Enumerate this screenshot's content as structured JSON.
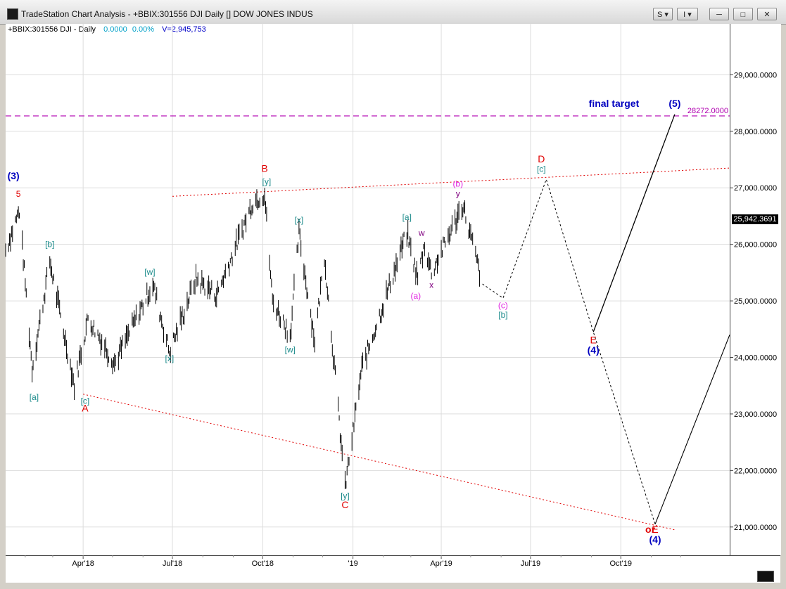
{
  "window": {
    "title": "TradeStation Chart Analysis - +BBIX:301556 DJI Daily [] DOW JONES INDUS",
    "buttons": {
      "style": "S",
      "insert": "I",
      "minimize": "─",
      "maximize": "□",
      "close": "✕"
    }
  },
  "legend": {
    "symbol": "+BBIX:301556 DJI - Daily",
    "change": "0.0000",
    "change_pct": "0.00%",
    "volume": "V=2,945,753"
  },
  "last_price": "25,942.3691",
  "colors": {
    "price_bars": "#000000",
    "red": "#e00000",
    "teal": "#1a8a8a",
    "blue": "#0000c0",
    "magenta": "#e020e0",
    "purple": "#800080",
    "target_line": "#b000b0"
  },
  "chart_data": {
    "type": "line",
    "title": "",
    "x_tick_labels": [
      "Apr'18",
      "Jul'18",
      "Oct'18",
      "'19",
      "Apr'19",
      "Jul'19",
      "Oct'19"
    ],
    "x_tick_dates": [
      "2018-04-01",
      "2018-07-01",
      "2018-10-01",
      "2019-01-01",
      "2019-04-01",
      "2019-07-01",
      "2019-10-01"
    ],
    "y_tick_labels": [
      "21,000.0000",
      "22,000.0000",
      "23,000.0000",
      "24,000.0000",
      "25,000.0000",
      "26,000.0000",
      "27,000.0000",
      "28,000.0000",
      "29,000.0000"
    ],
    "ylim": [
      20500,
      29900
    ],
    "xlim": [
      "2018-01-12",
      "2020-01-20"
    ],
    "price_path": [
      [
        "2018-01-12",
        25900
      ],
      [
        "2018-01-26",
        26600
      ],
      [
        "2018-02-08",
        23800
      ],
      [
        "2018-02-26",
        25700
      ],
      [
        "2018-03-23",
        23500
      ],
      [
        "2018-04-06",
        24700
      ],
      [
        "2018-05-03",
        23900
      ],
      [
        "2018-06-11",
        25300
      ],
      [
        "2018-06-28",
        24100
      ],
      [
        "2018-07-25",
        25400
      ],
      [
        "2018-08-15",
        25100
      ],
      [
        "2018-09-21",
        26750
      ],
      [
        "2018-10-03",
        26900
      ],
      [
        "2018-10-11",
        25000
      ],
      [
        "2018-10-29",
        24400
      ],
      [
        "2018-11-07",
        26200
      ],
      [
        "2018-11-23",
        24300
      ],
      [
        "2018-12-03",
        25800
      ],
      [
        "2018-12-24",
        21700
      ],
      [
        "2019-01-10",
        23800
      ],
      [
        "2019-02-25",
        26200
      ],
      [
        "2019-03-08",
        25400
      ],
      [
        "2019-03-15",
        26000
      ],
      [
        "2019-03-22",
        25500
      ],
      [
        "2019-04-23",
        26700
      ],
      [
        "2019-05-13",
        25300
      ]
    ],
    "projection_dotted": [
      [
        "2019-05-13",
        25300
      ],
      [
        "2019-06-03",
        25050
      ],
      [
        "2019-07-17",
        27150
      ],
      [
        "2019-09-03",
        24450
      ],
      [
        "2019-11-05",
        21050
      ]
    ],
    "projection_solid": [
      [
        "2019-09-03",
        24450
      ],
      [
        "2019-11-25",
        28300
      ]
    ],
    "projection_solid_alt": [
      [
        "2019-11-05",
        21050
      ],
      [
        "2020-01-20",
        24400
      ]
    ],
    "trendlines": [
      {
        "from": [
          "2018-07-01",
          26850
        ],
        "to": [
          "2020-01-20",
          27350
        ],
        "style": "dotted",
        "color": "#e00000"
      },
      {
        "from": [
          "2018-04-01",
          23350
        ],
        "to": [
          "2019-11-25",
          20950
        ],
        "style": "dotted",
        "color": "#e00000"
      }
    ],
    "target": {
      "value": 28272.0,
      "label": "28272.0000",
      "text": "final target"
    },
    "annotations": [
      {
        "text": "(3)",
        "date": "2018-01-20",
        "price": 27150,
        "color": "#0000c0",
        "bold": true,
        "size": 14
      },
      {
        "text": "5",
        "date": "2018-01-25",
        "price": 26840,
        "color": "#e00000",
        "size": 12
      },
      {
        "text": "[b]",
        "date": "2018-02-26",
        "price": 25950,
        "color": "#1a8a8a",
        "size": 12
      },
      {
        "text": "[a]",
        "date": "2018-02-10",
        "price": 23250,
        "color": "#1a8a8a",
        "size": 12
      },
      {
        "text": "[c]",
        "date": "2018-04-03",
        "price": 23180,
        "color": "#1a8a8a",
        "size": 12
      },
      {
        "text": "A",
        "date": "2018-04-03",
        "price": 23040,
        "color": "#e00000",
        "size": 14
      },
      {
        "text": "[w]",
        "date": "2018-06-08",
        "price": 25460,
        "color": "#1a8a8a",
        "size": 12
      },
      {
        "text": "[x]",
        "date": "2018-06-28",
        "price": 23930,
        "color": "#1a8a8a",
        "size": 12
      },
      {
        "text": "B",
        "date": "2018-10-03",
        "price": 27280,
        "color": "#e00000",
        "size": 14
      },
      {
        "text": "[y]",
        "date": "2018-10-05",
        "price": 27060,
        "color": "#1a8a8a",
        "size": 12
      },
      {
        "text": "[x]",
        "date": "2018-11-07",
        "price": 26380,
        "color": "#1a8a8a",
        "size": 12
      },
      {
        "text": "[w]",
        "date": "2018-10-29",
        "price": 24090,
        "color": "#1a8a8a",
        "size": 12
      },
      {
        "text": "[y]",
        "date": "2018-12-24",
        "price": 21500,
        "color": "#1a8a8a",
        "size": 12
      },
      {
        "text": "C",
        "date": "2018-12-24",
        "price": 21330,
        "color": "#e00000",
        "size": 14
      },
      {
        "text": "[a]",
        "date": "2019-02-25",
        "price": 26430,
        "color": "#1a8a8a",
        "size": 12
      },
      {
        "text": "w",
        "date": "2019-03-12",
        "price": 26150,
        "color": "#800080",
        "size": 12
      },
      {
        "text": "x",
        "date": "2019-03-22",
        "price": 25230,
        "color": "#800080",
        "size": 12
      },
      {
        "text": "(a)",
        "date": "2019-03-06",
        "price": 25040,
        "color": "#e020e0",
        "size": 12
      },
      {
        "text": "(b)",
        "date": "2019-04-18",
        "price": 27020,
        "color": "#e020e0",
        "size": 12
      },
      {
        "text": "y",
        "date": "2019-04-18",
        "price": 26850,
        "color": "#800080",
        "size": 12
      },
      {
        "text": "(c)",
        "date": "2019-06-03",
        "price": 24870,
        "color": "#e020e0",
        "size": 12
      },
      {
        "text": "[b]",
        "date": "2019-06-03",
        "price": 24700,
        "color": "#1a8a8a",
        "size": 12
      },
      {
        "text": "D",
        "date": "2019-07-12",
        "price": 27450,
        "color": "#e00000",
        "size": 14
      },
      {
        "text": "[c]",
        "date": "2019-07-12",
        "price": 27280,
        "color": "#1a8a8a",
        "size": 12
      },
      {
        "text": "E",
        "date": "2019-09-03",
        "price": 24250,
        "color": "#e00000",
        "size": 14
      },
      {
        "text": "(4)",
        "date": "2019-09-03",
        "price": 24070,
        "color": "#0000c0",
        "bold": true,
        "size": 14
      },
      {
        "text": "or",
        "date": "2019-10-31",
        "price": 20900,
        "color": "#e00000",
        "bold": true,
        "size": 14
      },
      {
        "text": "E",
        "date": "2019-11-05",
        "price": 20900,
        "color": "#e00000",
        "size": 14
      },
      {
        "text": "(4)",
        "date": "2019-11-05",
        "price": 20720,
        "color": "#0000c0",
        "bold": true,
        "size": 14
      },
      {
        "text": "(5)",
        "date": "2019-11-25",
        "price": 28430,
        "color": "#0000c0",
        "bold": true,
        "size": 14
      },
      {
        "text": "final target",
        "date": "2019-09-24",
        "price": 28430,
        "color": "#0000c0",
        "bold": true,
        "size": 14
      }
    ]
  }
}
